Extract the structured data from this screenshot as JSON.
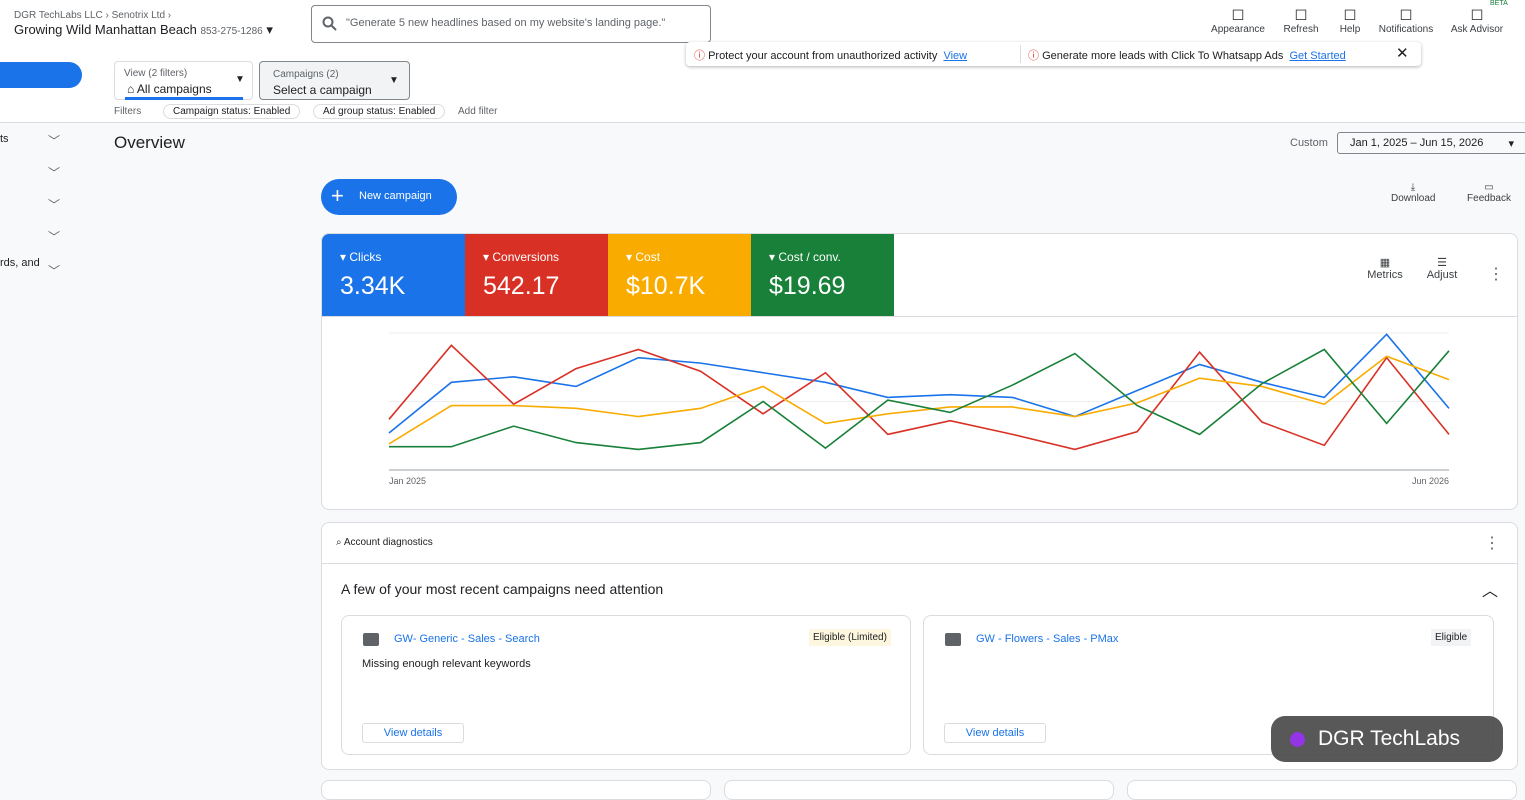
{
  "header": {
    "breadcrumb": [
      "DGR TechLabs LLC",
      "Senotrix Ltd"
    ],
    "account": "Growing Wild Manhattan Beach",
    "phone": "853-275-1286",
    "search": "\"Generate 5 new headlines based on my website's landing page.\"",
    "tools": [
      "Appearance",
      "Refresh",
      "Help",
      "Notifications",
      "Ask Advisor"
    ],
    "beta": "BETA"
  },
  "notices": [
    {
      "text": "Protect your account from unauthorized activity",
      "link": "View"
    },
    {
      "text": "Generate more leads with Click To Whatsapp Ads",
      "link": "Get Started"
    }
  ],
  "filters": {
    "view_label": "View (2 filters)",
    "view_value": "All campaigns",
    "campaigns_label": "Campaigns (2)",
    "campaigns_value": "Select a campaign",
    "filters_label": "Filters",
    "chips": [
      "Campaign status: Enabled",
      "Ad group status: Enabled"
    ],
    "add_filter": "Add filter"
  },
  "sidebar": {
    "items": [
      "ts",
      "rds, and"
    ]
  },
  "overview": {
    "title": "Overview",
    "date_label": "Custom",
    "date_range": "Jan 1, 2025 – Jun 15, 2026",
    "new_campaign": "New campaign",
    "actions": [
      "Download",
      "Feedback"
    ],
    "chart_tools": [
      "Metrics",
      "Adjust"
    ]
  },
  "chart_data": {
    "type": "line",
    "categories": [
      "Jan 2025",
      null,
      null,
      null,
      null,
      null,
      null,
      null,
      null,
      null,
      null,
      null,
      null,
      null,
      null,
      null,
      null,
      "Jun 2026"
    ],
    "ylim": [
      0,
      100
    ],
    "series": [
      {
        "name": "Clicks",
        "total": "3.34K",
        "color": "#1a73e8",
        "values": [
          27,
          64,
          68,
          61,
          82,
          78,
          71,
          64,
          53,
          55,
          53,
          39,
          58,
          77,
          64,
          53,
          99,
          45
        ]
      },
      {
        "name": "Conversions",
        "total": "542.17",
        "color": "#d93025",
        "values": [
          37,
          91,
          48,
          74,
          88,
          72,
          41,
          71,
          26,
          36,
          26,
          15,
          28,
          86,
          35,
          18,
          82,
          26
        ]
      },
      {
        "name": "Cost",
        "total": "$10.7K",
        "color": "#f9ab00",
        "values": [
          19,
          47,
          47,
          45,
          39,
          45,
          61,
          34,
          41,
          46,
          46,
          39,
          49,
          67,
          61,
          48,
          83,
          66
        ]
      },
      {
        "name": "Cost / conv.",
        "total": "$19.69",
        "color": "#188038",
        "values": [
          17,
          17,
          32,
          20,
          15,
          20,
          50,
          16,
          51,
          42,
          62,
          85,
          47,
          26,
          63,
          88,
          34,
          87
        ]
      }
    ]
  },
  "diagnostics": {
    "title": "Account diagnostics",
    "heading": "A few of your most recent campaigns need attention",
    "cards": [
      {
        "name": "GW- Generic - Sales - Search",
        "status": "Eligible (Limited)",
        "issue": "Missing enough relevant keywords",
        "button": "View details"
      },
      {
        "name": "GW - Flowers - Sales - PMax",
        "status": "Eligible",
        "button": "View details"
      }
    ]
  },
  "badge": "DGR TechLabs"
}
